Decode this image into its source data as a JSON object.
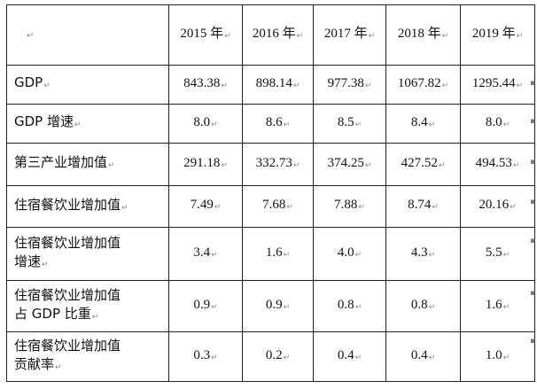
{
  "table": {
    "corner_mark": "↵",
    "para_mark": "↵",
    "years": [
      "2015 年",
      "2016 年",
      "2017 年",
      "2018 年",
      "2019 年"
    ],
    "rows": [
      {
        "label": [
          "GDP"
        ],
        "values": [
          "843.38",
          "898.14",
          "977.38",
          "1067.82",
          "1295.44"
        ]
      },
      {
        "label": [
          "GDP 增速"
        ],
        "values": [
          "8.0",
          "8.6",
          "8.5",
          "8.4",
          "8.0"
        ]
      },
      {
        "label": [
          "第三产业增加值"
        ],
        "values": [
          "291.18",
          "332.73",
          "374.25",
          "427.52",
          "494.53"
        ]
      },
      {
        "label": [
          "住宿餐饮业增加值"
        ],
        "values": [
          "7.49",
          "7.68",
          "7.88",
          "8.74",
          "20.16"
        ]
      },
      {
        "label": [
          "住宿餐饮业增加值",
          "增速"
        ],
        "values": [
          "3.4",
          "1.6",
          "4.0",
          "4.3",
          "5.5"
        ]
      },
      {
        "label": [
          "住宿餐饮业增加值",
          "占 GDP 比重"
        ],
        "values": [
          "0.9",
          "0.9",
          "0.8",
          "0.8",
          "1.6"
        ]
      },
      {
        "label": [
          "住宿餐饮业增加值",
          "贡献率"
        ],
        "values": [
          "0.3",
          "0.2",
          "0.4",
          "0.4",
          "1.0"
        ]
      }
    ]
  }
}
